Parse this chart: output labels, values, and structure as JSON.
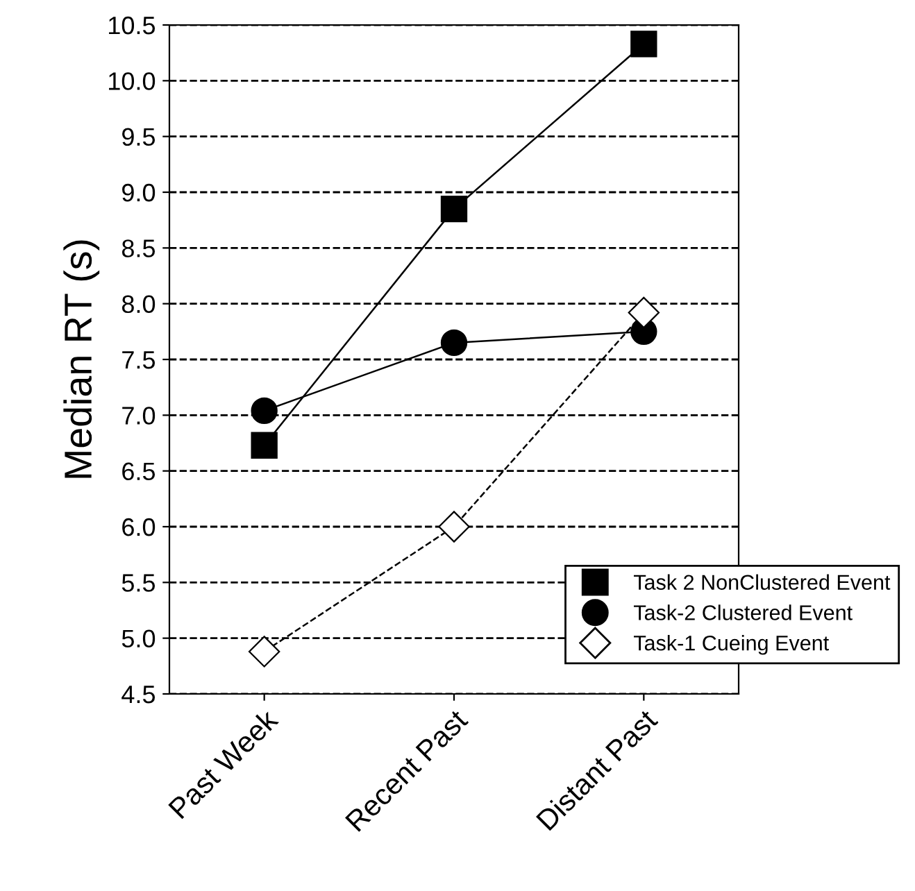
{
  "chart_data": {
    "type": "line",
    "ylabel": "Median RT (s)",
    "categories": [
      "Past Week",
      "Recent Past",
      "Distant Past"
    ],
    "series": [
      {
        "name": "Task 2 NonClustered Event",
        "color": "#000000",
        "marker": "square",
        "line_style": "solid",
        "values": [
          6.73,
          8.85,
          10.33
        ]
      },
      {
        "name": "Task-2 Clustered Event",
        "color": "#000000",
        "marker": "circle",
        "line_style": "solid",
        "values": [
          7.04,
          7.65,
          7.75
        ]
      },
      {
        "name": "Task-1 Cueing Event",
        "color": "#ffffff",
        "marker": "diamond",
        "line_style": "dashed",
        "values": [
          4.88,
          6.0,
          7.92
        ]
      }
    ],
    "ylim": [
      4.5,
      10.5
    ],
    "yticks": [
      {
        "value": 4.5,
        "label": "4.5"
      },
      {
        "value": 5,
        "label": "5.0"
      },
      {
        "value": 5.5,
        "label": "5.5"
      },
      {
        "value": 6,
        "label": "6.0"
      },
      {
        "value": 6.5,
        "label": "6.5"
      },
      {
        "value": 7,
        "label": "7.0"
      },
      {
        "value": 7.5,
        "label": "7.5"
      },
      {
        "value": 8,
        "label": "8.0"
      },
      {
        "value": 8.5,
        "label": "8.5"
      },
      {
        "value": 9,
        "label": "9.0"
      },
      {
        "value": 9.5,
        "label": "9.5"
      },
      {
        "value": 10,
        "label": "10.0"
      },
      {
        "value": 10.5,
        "label": "10.5"
      }
    ],
    "grid": "y",
    "legend": "bottom right"
  }
}
